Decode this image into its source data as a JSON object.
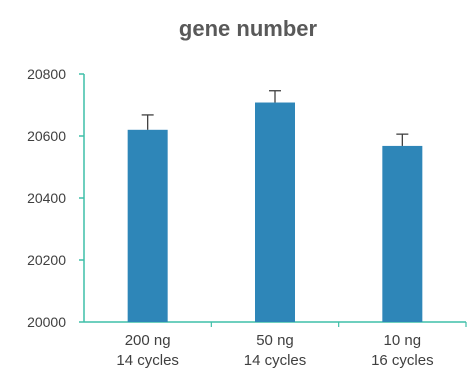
{
  "chart_data": {
    "type": "bar",
    "title": "gene number",
    "categories": [
      [
        "200 ng",
        "14 cycles"
      ],
      [
        "50 ng",
        "14 cycles"
      ],
      [
        "10 ng",
        "16 cycles"
      ]
    ],
    "values": [
      20620,
      20708,
      20568
    ],
    "error_upper": [
      20668,
      20746,
      20606
    ],
    "ylim": [
      20000,
      20800
    ],
    "yticks": [
      20000,
      20200,
      20400,
      20600,
      20800
    ],
    "ytick_labels": [
      "20000",
      "20200",
      "20400",
      "20600",
      "20800"
    ],
    "grid": false,
    "legend": "none",
    "colors": {
      "bar": "#2e86b8",
      "axis": "#3fbfa8",
      "error": "#404040"
    }
  }
}
